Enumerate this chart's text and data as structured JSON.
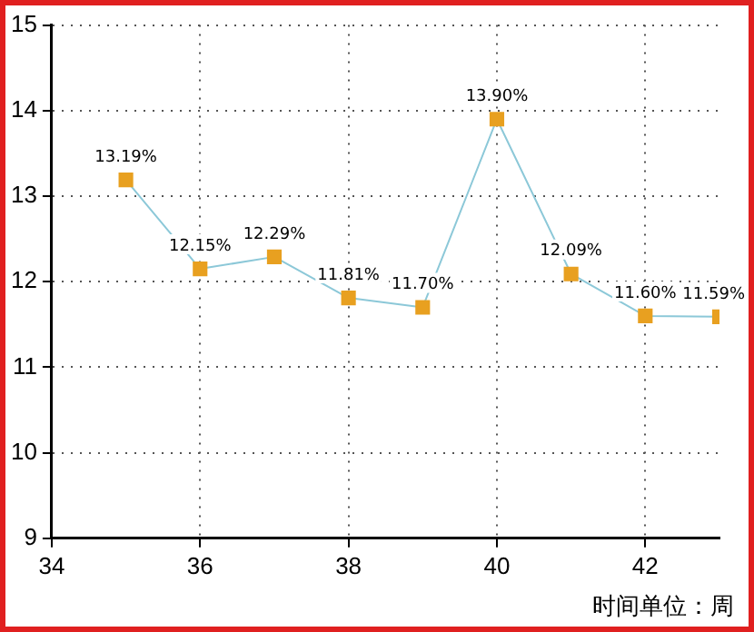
{
  "chart_data": {
    "type": "line",
    "x": [
      35,
      36,
      37,
      38,
      39,
      40,
      41,
      42,
      43
    ],
    "series": [
      {
        "color": "#e8a020",
        "values": [
          13.19,
          12.15,
          12.29,
          11.81,
          11.7,
          13.9,
          12.09,
          11.6,
          11.59
        ],
        "value_labels": [
          "13.19%",
          "12.15%",
          "12.29%",
          "11.81%",
          "11.70%",
          "13.90%",
          "12.09%",
          "11.60%",
          "11.59%"
        ]
      }
    ],
    "xlim": [
      34,
      43
    ],
    "xticks": [
      34,
      36,
      38,
      40,
      42
    ],
    "ylim": [
      9,
      15
    ],
    "yticks": [
      9,
      10,
      11,
      12,
      13,
      14,
      15
    ],
    "grid": true,
    "marker": "square",
    "line_style": "solid",
    "legend": false,
    "annotations": [
      "时间单位：周"
    ]
  }
}
